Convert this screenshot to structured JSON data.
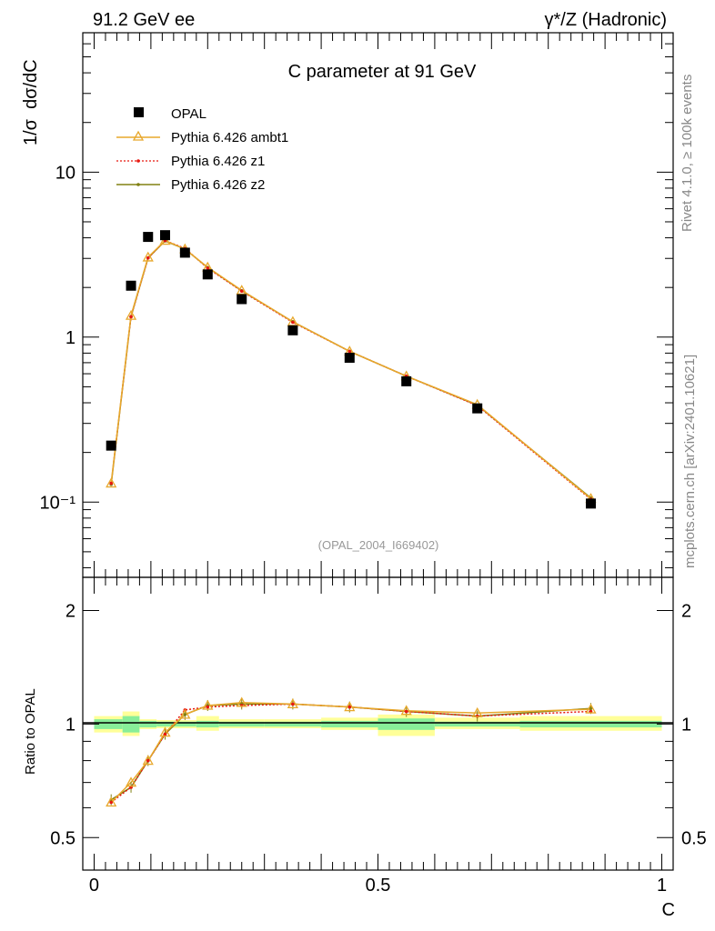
{
  "header": {
    "left": "91.2 GeV ee",
    "right": "γ*/Z (Hadronic)",
    "side_top": "Rivet 4.1.0, ≥ 100k events",
    "side_bottom": "mcplots.cern.ch [arXiv:2401.10621]"
  },
  "chart_data": [
    {
      "type": "line",
      "title": "C parameter at 91 GeV",
      "ylabel": "1/σ  dσ/dC",
      "xlabel": "C",
      "yscale": "log",
      "ylim": [
        0.035,
        70
      ],
      "xlim": [
        -0.02,
        1.02
      ],
      "yticks": [
        {
          "v": 10,
          "label": "10"
        },
        {
          "v": 1,
          "label": "1"
        },
        {
          "v": 0.1,
          "label": "10⁻¹"
        }
      ],
      "watermark": "(OPAL_2004_I669402)",
      "legend": [
        "OPAL",
        "Pythia 6.426 ambt1",
        "Pythia 6.426 z1",
        "Pythia 6.426 z2"
      ],
      "x": [
        0.03,
        0.065,
        0.095,
        0.125,
        0.16,
        0.2,
        0.26,
        0.35,
        0.45,
        0.55,
        0.675,
        0.875
      ],
      "series": [
        {
          "name": "OPAL",
          "values": [
            0.22,
            2.05,
            4.05,
            4.15,
            3.25,
            2.4,
            1.7,
            1.1,
            0.75,
            0.54,
            0.37,
            0.098
          ]
        },
        {
          "name": "Pythia 6.426 ambt1",
          "values": [
            0.13,
            1.35,
            3.05,
            3.85,
            3.42,
            2.65,
            1.92,
            1.24,
            0.82,
            0.58,
            0.39,
            0.105
          ]
        },
        {
          "name": "Pythia 6.426 z1",
          "values": [
            0.13,
            1.33,
            3.02,
            3.85,
            3.45,
            2.62,
            1.9,
            1.23,
            0.82,
            0.58,
            0.385,
            0.104
          ]
        },
        {
          "name": "Pythia 6.426 z2",
          "values": [
            0.128,
            1.33,
            3.02,
            3.83,
            3.42,
            2.64,
            1.91,
            1.24,
            0.82,
            0.58,
            0.387,
            0.106
          ]
        }
      ]
    },
    {
      "type": "line",
      "ylabel": "Ratio to OPAL",
      "xlabel": "C",
      "yscale": "log",
      "ylim": [
        0.41,
        2.45
      ],
      "xlim": [
        -0.02,
        1.02
      ],
      "yticks": [
        {
          "v": 2,
          "label": "2"
        },
        {
          "v": 1,
          "label": "1"
        },
        {
          "v": 0.5,
          "label": "0.5"
        }
      ],
      "xticks": [
        {
          "v": 0,
          "label": "0"
        },
        {
          "v": 0.5,
          "label": "0.5"
        },
        {
          "v": 1,
          "label": "1"
        }
      ],
      "x": [
        0.03,
        0.065,
        0.095,
        0.125,
        0.16,
        0.2,
        0.26,
        0.35,
        0.45,
        0.55,
        0.675,
        0.875
      ],
      "series": [
        {
          "name": "Pythia 6.426 ambt1",
          "values": [
            0.62,
            0.7,
            0.8,
            0.95,
            1.06,
            1.12,
            1.14,
            1.13,
            1.11,
            1.085,
            1.07,
            1.095
          ]
        },
        {
          "name": "Pythia 6.426 z1",
          "values": [
            0.62,
            0.68,
            0.8,
            0.94,
            1.09,
            1.11,
            1.12,
            1.13,
            1.11,
            1.08,
            1.05,
            1.08
          ]
        },
        {
          "name": "Pythia 6.426 z2",
          "values": [
            0.63,
            0.68,
            0.8,
            0.94,
            1.06,
            1.12,
            1.13,
            1.13,
            1.11,
            1.08,
            1.05,
            1.1
          ]
        }
      ],
      "bands": [
        {
          "x0": 0.0,
          "x1": 0.05,
          "y0_in": 0.97,
          "y1_in": 1.03,
          "y0_out": 0.95,
          "y1_out": 1.05
        },
        {
          "x0": 0.05,
          "x1": 0.08,
          "y0_in": 0.95,
          "y1_in": 1.05,
          "y0_out": 0.93,
          "y1_out": 1.08
        },
        {
          "x0": 0.08,
          "x1": 0.11,
          "y0_in": 0.98,
          "y1_in": 1.02,
          "y0_out": 0.97,
          "y1_out": 1.03
        },
        {
          "x0": 0.11,
          "x1": 0.14,
          "y0_in": 0.985,
          "y1_in": 1.015,
          "y0_out": 0.975,
          "y1_out": 1.025
        },
        {
          "x0": 0.14,
          "x1": 0.18,
          "y0_in": 0.985,
          "y1_in": 1.015,
          "y0_out": 0.975,
          "y1_out": 1.025
        },
        {
          "x0": 0.18,
          "x1": 0.22,
          "y0_in": 0.98,
          "y1_in": 1.02,
          "y0_out": 0.96,
          "y1_out": 1.05
        },
        {
          "x0": 0.22,
          "x1": 0.3,
          "y0_in": 0.985,
          "y1_in": 1.015,
          "y0_out": 0.975,
          "y1_out": 1.03
        },
        {
          "x0": 0.3,
          "x1": 0.4,
          "y0_in": 0.985,
          "y1_in": 1.015,
          "y0_out": 0.975,
          "y1_out": 1.03
        },
        {
          "x0": 0.4,
          "x1": 0.5,
          "y0_in": 0.98,
          "y1_in": 1.02,
          "y0_out": 0.965,
          "y1_out": 1.04
        },
        {
          "x0": 0.5,
          "x1": 0.6,
          "y0_in": 0.965,
          "y1_in": 1.035,
          "y0_out": 0.93,
          "y1_out": 1.06
        },
        {
          "x0": 0.6,
          "x1": 0.75,
          "y0_in": 0.985,
          "y1_in": 1.015,
          "y0_out": 0.97,
          "y1_out": 1.04
        },
        {
          "x0": 0.75,
          "x1": 1.0,
          "y0_in": 0.98,
          "y1_in": 1.02,
          "y0_out": 0.96,
          "y1_out": 1.05
        }
      ]
    }
  ],
  "colors": {
    "data": "#000000",
    "ambt1": "#e8a82c",
    "z1": "#e8170f",
    "z2": "#808012",
    "band_outer": "#ffff99",
    "band_inner": "#88ee99",
    "watermark": "#999999"
  }
}
